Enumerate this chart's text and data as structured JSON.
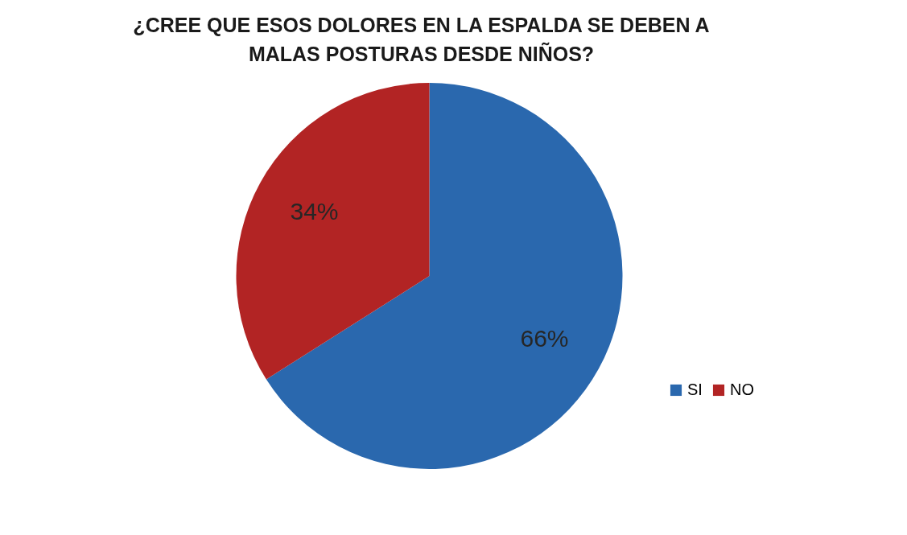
{
  "chart_data": {
    "type": "pie",
    "title": "¿CREE QUE ESOS DOLORES EN LA ESPALDA SE DEBEN A MALAS POSTURAS DESDE NIÑOS?",
    "categories": [
      "SI",
      "NO"
    ],
    "values": [
      66,
      34
    ],
    "colors": [
      "#2a68ae",
      "#b22424"
    ],
    "value_labels": [
      "66%",
      "34%"
    ],
    "legend": "bottom right"
  }
}
